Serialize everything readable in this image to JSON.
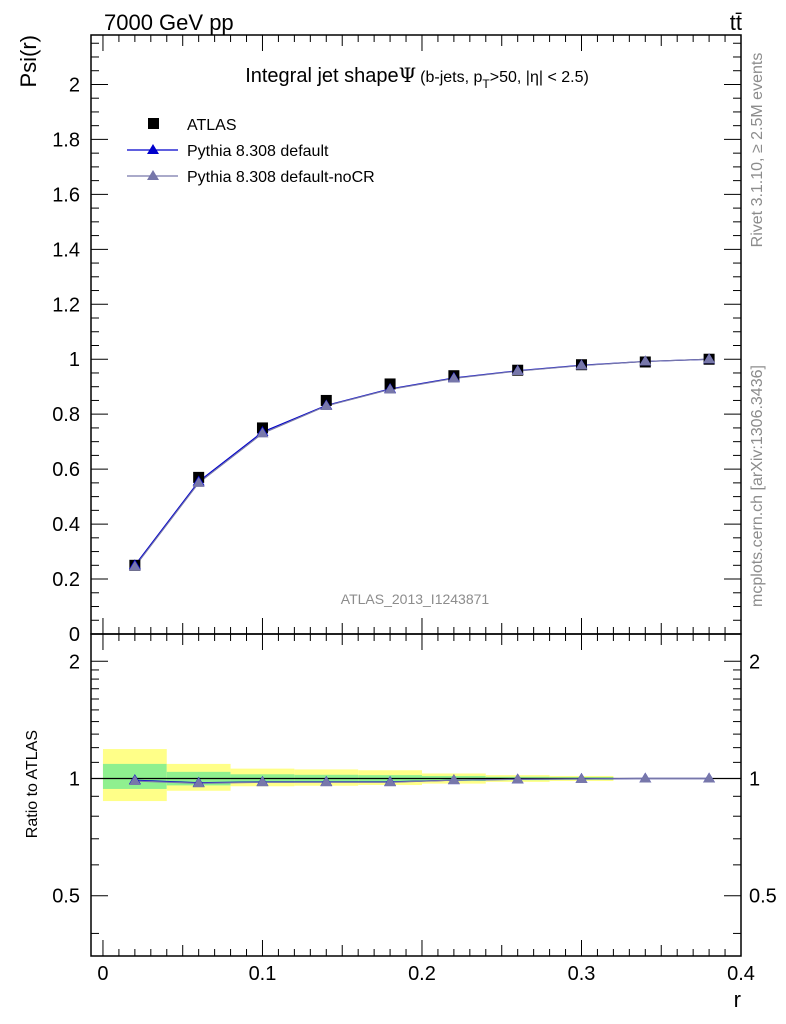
{
  "header": {
    "left": "7000 GeV pp",
    "right": "tt̄"
  },
  "side_labels": {
    "rivet": "Rivet 3.1.10, ≥ 2.5M events",
    "source": "mcplots.cern.ch [arXiv:1306.3436]"
  },
  "chart_data": [
    {
      "type": "scatter",
      "title_main": "Integral jet shape",
      "title_symbol": "Ψ",
      "title_cond_pre": "(b-jets, p",
      "title_cond_sub": "T",
      "title_cond_post": ">50, |η| < 2.5)",
      "ylabel": "Psi(r)",
      "xlabel": "r",
      "watermark": "ATLAS_2013_I1243871",
      "xlim": [
        -0.0075,
        0.4
      ],
      "ylim": [
        0,
        2.18
      ],
      "y_ticks": [
        "0",
        "0.2",
        "0.4",
        "0.6",
        "0.8",
        "1",
        "1.2",
        "1.4",
        "1.6",
        "1.8",
        "2"
      ],
      "x": [
        0.02,
        0.06,
        0.1,
        0.14,
        0.18,
        0.22,
        0.26,
        0.3,
        0.34,
        0.38
      ],
      "series": [
        {
          "name": "ATLAS",
          "color": "#000000",
          "marker": "square",
          "values": [
            0.25,
            0.57,
            0.75,
            0.85,
            0.91,
            0.94,
            0.96,
            0.98,
            0.99,
            1.0
          ]
        },
        {
          "name": "Pythia 8.308 default",
          "color": "#0000cc",
          "marker": "triangle",
          "values": [
            0.25,
            0.555,
            0.735,
            0.832,
            0.892,
            0.932,
            0.958,
            0.978,
            0.992,
            1.0
          ]
        },
        {
          "name": "Pythia 8.308 default-noCR",
          "color": "#7777aa",
          "marker": "triangle",
          "values": [
            0.245,
            0.55,
            0.73,
            0.83,
            0.89,
            0.93,
            0.957,
            0.977,
            0.992,
            1.0
          ]
        }
      ]
    },
    {
      "type": "scatter",
      "ylabel": "Ratio to ATLAS",
      "xlabel": "r",
      "xlim": [
        -0.0075,
        0.4
      ],
      "ylim": [
        0.35,
        2.35
      ],
      "y_scale": "log",
      "y_ticks": [
        "0.5",
        "1",
        "2"
      ],
      "x_ticks": [
        "0",
        "0.1",
        "0.2",
        "0.3",
        "0.4"
      ],
      "bins": [
        [
          0,
          0.04
        ],
        [
          0.04,
          0.08
        ],
        [
          0.08,
          0.12
        ],
        [
          0.12,
          0.16
        ],
        [
          0.16,
          0.2
        ],
        [
          0.2,
          0.24
        ],
        [
          0.24,
          0.28
        ],
        [
          0.28,
          0.32
        ]
      ],
      "band_stat": [
        [
          0.94,
          1.09
        ],
        [
          0.96,
          1.04
        ],
        [
          0.975,
          1.025
        ],
        [
          0.978,
          1.022
        ],
        [
          0.98,
          1.02
        ],
        [
          0.985,
          1.015
        ],
        [
          0.99,
          1.01
        ],
        [
          0.992,
          1.008
        ]
      ],
      "band_total": [
        [
          0.875,
          1.19
        ],
        [
          0.93,
          1.09
        ],
        [
          0.955,
          1.06
        ],
        [
          0.958,
          1.055
        ],
        [
          0.962,
          1.05
        ],
        [
          0.97,
          1.03
        ],
        [
          0.98,
          1.02
        ],
        [
          0.985,
          1.015
        ]
      ],
      "band_colors": {
        "stat": "#8ff08f",
        "total": "#ffff88"
      },
      "x": [
        0.02,
        0.06,
        0.1,
        0.14,
        0.18,
        0.22,
        0.26,
        0.3,
        0.34,
        0.38
      ],
      "series": [
        {
          "name": "Pythia 8.308 default",
          "color": "#0000cc",
          "values": [
            0.99,
            0.975,
            0.98,
            0.98,
            0.98,
            0.99,
            0.995,
            0.998,
            1.0,
            1.0
          ]
        },
        {
          "name": "Pythia 8.308 default-noCR",
          "color": "#7777aa",
          "values": [
            0.985,
            0.972,
            0.978,
            0.978,
            0.978,
            0.99,
            0.995,
            0.997,
            1.0,
            1.0
          ]
        }
      ]
    }
  ]
}
